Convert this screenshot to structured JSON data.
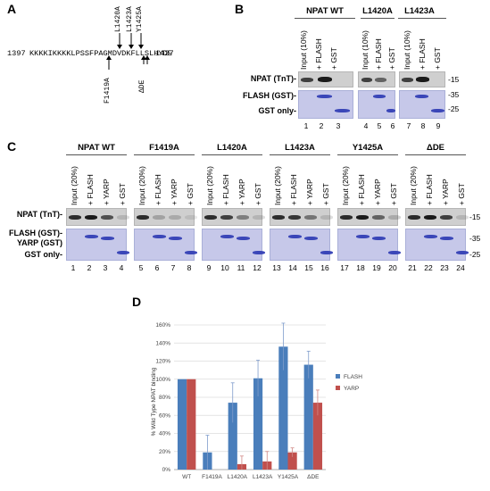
{
  "panelA": {
    "label": "A",
    "start": "1397",
    "sequence": "KKKKIKKKKLPSSFPAGMDVDKFLLSLHYDE",
    "end": "1427",
    "mutations_below": [
      "F1419A"
    ],
    "mutations_above": [
      "L1420A",
      "L1423A",
      "Y1425A"
    ],
    "deletion": "ΔDE"
  },
  "panelB": {
    "label": "B",
    "groups": [
      "NPAT WT",
      "L1420A",
      "L1423A"
    ],
    "lanes": [
      "Input (10%)",
      "+ FLASH",
      "+ GST"
    ],
    "row_labels": [
      "NPAT (TnT)-",
      "FLASH (GST)-",
      "GST only-"
    ],
    "mw": [
      "-15",
      "-35",
      "-25"
    ],
    "lane_numbers": [
      "1",
      "2",
      "3",
      "4",
      "5",
      "6",
      "7",
      "8",
      "9"
    ]
  },
  "panelC": {
    "label": "C",
    "groups": [
      "NPAT WT",
      "F1419A",
      "L1420A",
      "L1423A",
      "Y1425A",
      "ΔDE"
    ],
    "lanes": [
      "Input (20%)",
      "+ FLASH",
      "+ YARP",
      "+ GST"
    ],
    "row_labels": [
      "NPAT (TnT)-",
      "FLASH (GST)-",
      "YARP (GST)",
      "GST only-"
    ],
    "mw": [
      "-15",
      "-35",
      "-25"
    ],
    "lane_numbers": [
      "1",
      "2",
      "3",
      "4",
      "5",
      "6",
      "7",
      "8",
      "9",
      "10",
      "11",
      "12",
      "13",
      "14",
      "15",
      "16",
      "17",
      "18",
      "19",
      "20",
      "21",
      "22",
      "23",
      "24"
    ]
  },
  "panelD": {
    "label": "D",
    "colors": {
      "FLASH": "#4a7ebb",
      "YARP": "#c0504d"
    },
    "chart_data": {
      "type": "bar",
      "title": "",
      "ylabel": "% Wild Type NPAT binding",
      "xlabel": "",
      "categories": [
        "WT",
        "F1419A",
        "L1420A",
        "L1423A",
        "Y1425A",
        "ΔDE"
      ],
      "series": [
        {
          "name": "FLASH",
          "values": [
            100,
            19,
            74,
            101,
            136,
            116
          ],
          "errors": [
            0,
            19,
            22,
            20,
            26,
            15
          ]
        },
        {
          "name": "YARP",
          "values": [
            100,
            0,
            6,
            9,
            19,
            74
          ],
          "errors": [
            0,
            0,
            9,
            11,
            5,
            14
          ]
        }
      ],
      "ylim": [
        0,
        160
      ],
      "yticks": [
        "0%",
        "20%",
        "40%",
        "60%",
        "80%",
        "100%",
        "120%",
        "140%",
        "160%"
      ],
      "grid": true,
      "legend": "right"
    }
  }
}
